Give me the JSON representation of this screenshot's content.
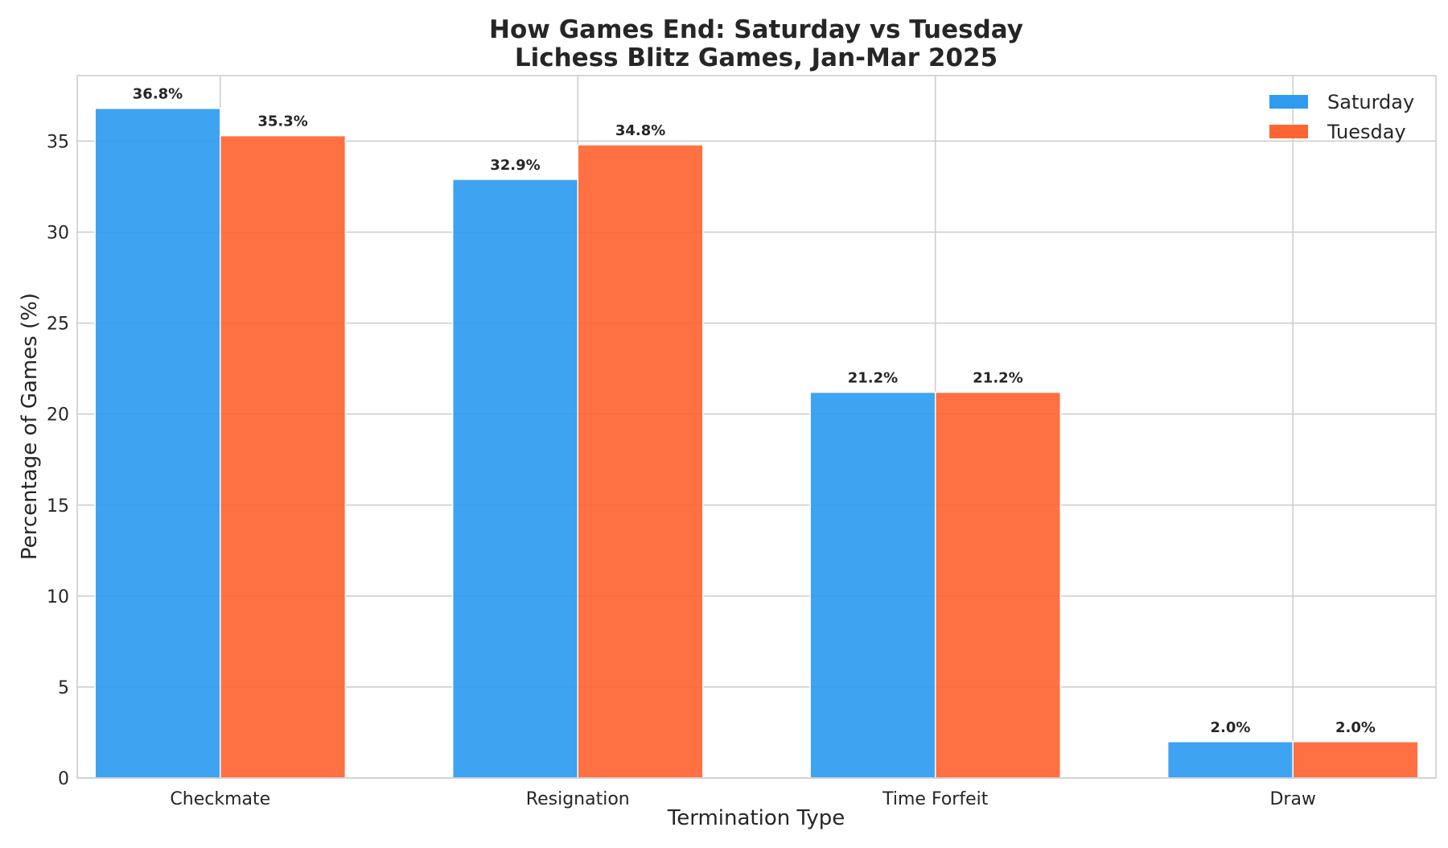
{
  "chart_data": {
    "type": "bar",
    "title_line1": "How Games End: Saturday vs Tuesday",
    "title_line2": "Lichess Blitz Games, Jan-Mar 2025",
    "xlabel": "Termination Type",
    "ylabel": "Percentage of Games (%)",
    "categories": [
      "Checkmate",
      "Resignation",
      "Time Forfeit",
      "Draw"
    ],
    "series": [
      {
        "name": "Saturday",
        "color": "#2E9BF0",
        "values": [
          36.8,
          32.9,
          21.2,
          2.0
        ],
        "labels": [
          "36.8%",
          "32.9%",
          "21.2%",
          "2.0%"
        ]
      },
      {
        "name": "Tuesday",
        "color": "#FF6433",
        "values": [
          35.3,
          34.8,
          21.2,
          2.0
        ],
        "labels": [
          "35.3%",
          "34.8%",
          "21.2%",
          "2.0%"
        ]
      }
    ],
    "ylim": [
      0,
      38.6
    ],
    "yticks": [
      0,
      5,
      10,
      15,
      20,
      25,
      30,
      35
    ],
    "ytick_labels": [
      "0",
      "5",
      "10",
      "15",
      "20",
      "25",
      "30",
      "35"
    ],
    "grid": true,
    "legend_position": "top-right"
  }
}
